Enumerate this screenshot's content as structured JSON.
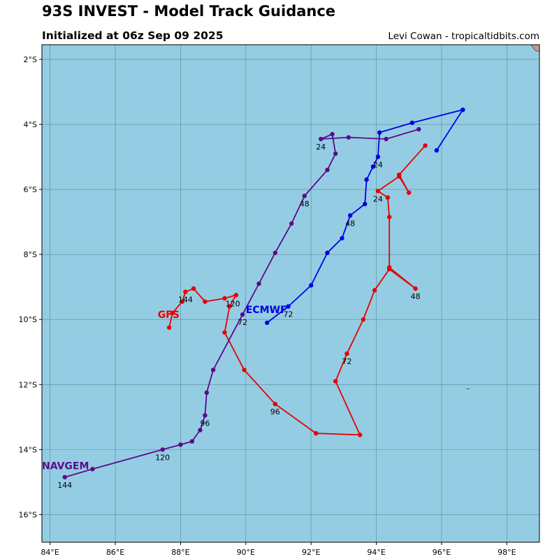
{
  "title": "93S INVEST - Model Track Guidance",
  "subtitle": "Initialized at 06z Sep 09 2025",
  "credit": "Levi Cowan - tropicaltidbits.com",
  "map": {
    "lon_range": [
      83.75,
      99.0
    ],
    "lat_range": [
      -16.85,
      -1.55
    ],
    "ocean_color": "#94cde3",
    "grid_color": "#4f6f7a",
    "x_ticks": [
      {
        "value": 84,
        "label": "84°E"
      },
      {
        "value": 86,
        "label": "86°E"
      },
      {
        "value": 88,
        "label": "88°E"
      },
      {
        "value": 90,
        "label": "90°E"
      },
      {
        "value": 92,
        "label": "92°E"
      },
      {
        "value": 94,
        "label": "94°E"
      },
      {
        "value": 96,
        "label": "96°E"
      },
      {
        "value": 98,
        "label": "98°E"
      }
    ],
    "y_ticks": [
      {
        "value": -2,
        "label": "2°S"
      },
      {
        "value": -4,
        "label": "4°S"
      },
      {
        "value": -6,
        "label": "6°S"
      },
      {
        "value": -8,
        "label": "8°S"
      },
      {
        "value": -10,
        "label": "10°S"
      },
      {
        "value": -12,
        "label": "12°S"
      },
      {
        "value": -14,
        "label": "14°S"
      },
      {
        "value": -16,
        "label": "16°S"
      }
    ]
  },
  "chart_data": {
    "type": "map-tracks",
    "series": [
      {
        "name": "ECMWF",
        "color": "#0000e6",
        "points": [
          [
            96.65,
            -3.55
          ],
          [
            95.85,
            -4.8
          ],
          [
            96.65,
            -3.55
          ],
          [
            95.1,
            -3.95
          ],
          [
            94.1,
            -4.25
          ],
          [
            94.05,
            -5.0
          ],
          [
            93.9,
            -5.3
          ],
          [
            93.7,
            -5.7
          ],
          [
            93.65,
            -6.45
          ],
          [
            93.2,
            -6.8
          ],
          [
            92.95,
            -7.5
          ],
          [
            92.5,
            -7.95
          ],
          [
            92.0,
            -8.95
          ],
          [
            91.3,
            -9.6
          ],
          [
            90.65,
            -10.1
          ]
        ],
        "label": {
          "lon": 90.0,
          "lat": -9.8
        },
        "hour_labels": [
          {
            "text": "24",
            "lon": 94.05,
            "lat": -5.0
          },
          {
            "text": "48",
            "lon": 93.2,
            "lat": -6.8
          },
          {
            "text": "72",
            "lon": 91.3,
            "lat": -9.6
          }
        ]
      },
      {
        "name": "GFS",
        "color": "#e60000",
        "points": [
          [
            95.5,
            -4.65
          ],
          [
            94.7,
            -5.55
          ],
          [
            95.0,
            -6.1
          ],
          [
            94.7,
            -5.6
          ],
          [
            94.05,
            -6.05
          ],
          [
            94.35,
            -6.25
          ],
          [
            94.4,
            -6.85
          ],
          [
            94.4,
            -8.4
          ],
          [
            95.2,
            -9.05
          ],
          [
            94.4,
            -8.45
          ],
          [
            93.95,
            -9.1
          ],
          [
            93.6,
            -10.0
          ],
          [
            93.1,
            -11.05
          ],
          [
            92.75,
            -11.9
          ],
          [
            93.5,
            -13.55
          ],
          [
            92.15,
            -13.5
          ],
          [
            90.9,
            -12.6
          ],
          [
            89.95,
            -11.55
          ],
          [
            89.35,
            -10.4
          ],
          [
            89.5,
            -9.6
          ],
          [
            89.7,
            -9.25
          ],
          [
            89.35,
            -9.35
          ],
          [
            88.75,
            -9.45
          ],
          [
            88.4,
            -9.05
          ],
          [
            88.15,
            -9.15
          ],
          [
            88.05,
            -9.45
          ],
          [
            87.75,
            -9.8
          ],
          [
            87.65,
            -10.25
          ]
        ],
        "label": {
          "lon": 87.3,
          "lat": -9.95
        },
        "hour_labels": [
          {
            "text": "24",
            "lon": 94.05,
            "lat": -6.05
          },
          {
            "text": "48",
            "lon": 95.2,
            "lat": -9.05
          },
          {
            "text": "72",
            "lon": 93.1,
            "lat": -11.05
          },
          {
            "text": "96",
            "lon": 90.9,
            "lat": -12.6
          },
          {
            "text": "120",
            "lon": 89.6,
            "lat": -9.28
          },
          {
            "text": "144",
            "lon": 88.15,
            "lat": -9.15
          }
        ]
      },
      {
        "name": "NAVGEM",
        "color": "#5a0a8c",
        "points": [
          [
            95.3,
            -4.15
          ],
          [
            94.3,
            -4.45
          ],
          [
            93.15,
            -4.4
          ],
          [
            92.3,
            -4.45
          ],
          [
            92.65,
            -4.3
          ],
          [
            92.75,
            -4.9
          ],
          [
            92.5,
            -5.4
          ],
          [
            91.8,
            -6.2
          ],
          [
            91.4,
            -7.05
          ],
          [
            90.9,
            -7.95
          ],
          [
            90.4,
            -8.9
          ],
          [
            89.9,
            -9.85
          ],
          [
            89.0,
            -11.55
          ],
          [
            88.8,
            -12.25
          ],
          [
            88.75,
            -12.95
          ],
          [
            88.6,
            -13.4
          ],
          [
            88.35,
            -13.75
          ],
          [
            88.0,
            -13.85
          ],
          [
            87.45,
            -14.0
          ],
          [
            85.3,
            -14.6
          ],
          [
            84.45,
            -14.85
          ]
        ],
        "label": {
          "lon": 83.75,
          "lat": -14.6
        },
        "hour_labels": [
          {
            "text": "24",
            "lon": 92.3,
            "lat": -4.45
          },
          {
            "text": "48",
            "lon": 91.8,
            "lat": -6.2
          },
          {
            "text": "72",
            "lon": 89.9,
            "lat": -9.85
          },
          {
            "text": "96",
            "lon": 88.75,
            "lat": -12.95
          },
          {
            "text": "120",
            "lon": 87.45,
            "lat": -14.0
          },
          {
            "text": "144",
            "lon": 84.45,
            "lat": -14.85
          }
        ]
      }
    ]
  }
}
